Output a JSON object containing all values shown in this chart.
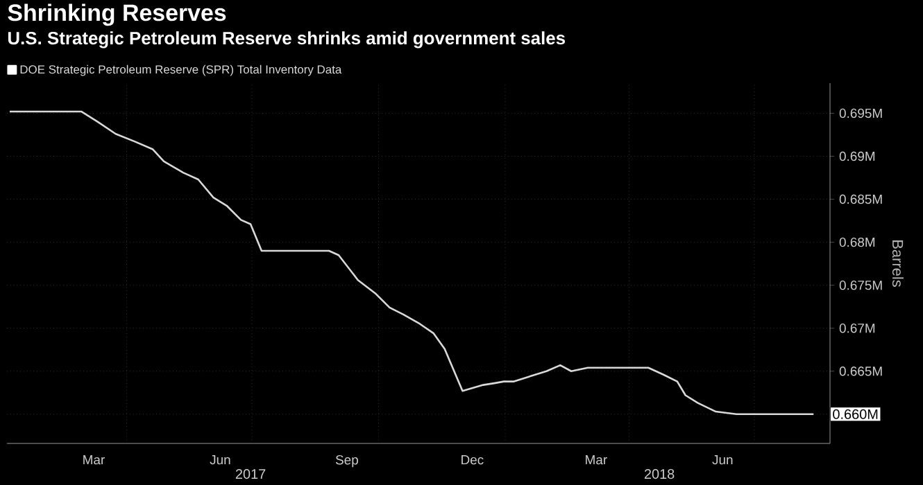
{
  "chart_data": {
    "type": "line",
    "title": "Shrinking Reserves",
    "subtitle": "U.S. Strategic Petroleum Reserve shrinks amid government sales",
    "ylabel": "Barrels",
    "x": [
      "2017-01-06",
      "2017-02-27",
      "2017-03-11",
      "2017-03-24",
      "2017-04-07",
      "2017-04-20",
      "2017-04-28",
      "2017-05-12",
      "2017-05-23",
      "2017-06-03",
      "2017-06-13",
      "2017-06-23",
      "2017-06-30",
      "2017-07-08",
      "2017-08-26",
      "2017-09-02",
      "2017-09-16",
      "2017-09-29",
      "2017-10-09",
      "2017-10-19",
      "2017-10-31",
      "2017-11-10",
      "2017-11-18",
      "2017-12-01",
      "2017-12-16",
      "2017-12-24",
      "2017-12-31",
      "2018-01-07",
      "2018-01-15",
      "2018-01-31",
      "2018-02-10",
      "2018-02-18",
      "2018-03-02",
      "2018-04-15",
      "2018-04-26",
      "2018-05-06",
      "2018-05-12",
      "2018-05-21",
      "2018-06-03",
      "2018-06-18",
      "2018-08-13"
    ],
    "series": [
      {
        "name": "DOE Strategic Petroleum Reserve (SPR) Total Inventory Data",
        "color": "#d9d9d9",
        "values": [
          0.6952,
          0.6952,
          0.694,
          0.6926,
          0.6917,
          0.6908,
          0.6894,
          0.6881,
          0.6873,
          0.6852,
          0.6842,
          0.6826,
          0.6821,
          0.679,
          0.679,
          0.6785,
          0.6756,
          0.674,
          0.6724,
          0.6716,
          0.6705,
          0.6694,
          0.6676,
          0.6627,
          0.6634,
          0.6636,
          0.6638,
          0.6638,
          0.6642,
          0.665,
          0.6657,
          0.665,
          0.6654,
          0.6654,
          0.6646,
          0.6638,
          0.6622,
          0.6613,
          0.6603,
          0.66,
          0.66
        ],
        "value_labels": [
          null,
          null,
          null,
          null,
          null,
          null,
          null,
          null,
          null,
          null,
          null,
          null,
          null,
          null,
          null,
          null,
          null,
          null,
          null,
          null,
          null,
          null,
          null,
          null,
          null,
          null,
          null,
          null,
          null,
          null,
          null,
          null,
          null,
          null,
          null,
          null,
          null,
          null,
          null,
          null,
          "0.660M"
        ]
      }
    ],
    "xlim": [
      "2017-01-04",
      "2018-08-25"
    ],
    "xticks": [
      {
        "value": "2017-03-08",
        "label": "Mar"
      },
      {
        "value": "2017-06-08",
        "label": "Jun"
      },
      {
        "value": "2017-09-08",
        "label": "Sep"
      },
      {
        "value": "2017-12-08",
        "label": "Dec"
      },
      {
        "value": "2018-03-08",
        "label": "Mar"
      },
      {
        "value": "2018-06-08",
        "label": "Jun"
      },
      {
        "value": "2017-04-01",
        "label": null
      },
      {
        "value": "2017-07-01",
        "label": null
      },
      {
        "value": "2017-10-01",
        "label": null
      },
      {
        "value": "2018-01-01",
        "label": null
      },
      {
        "value": "2018-04-01",
        "label": null
      },
      {
        "value": "2018-07-01",
        "label": null
      }
    ],
    "x2lim": [
      "2017-01-04",
      "2018-08-25"
    ],
    "x2ticks": [
      {
        "value": "2017-06-30",
        "label": "2017"
      },
      {
        "value": "2018-04-23",
        "label": "2018"
      }
    ],
    "ylim": [
      0.6566,
      0.6985
    ],
    "yticks": [
      {
        "value": 0.66,
        "label": null
      },
      {
        "value": 0.665,
        "label": "0.665M"
      },
      {
        "value": 0.67,
        "label": "0.67M"
      },
      {
        "value": 0.675,
        "label": "0.675M"
      },
      {
        "value": 0.68,
        "label": "0.68M"
      },
      {
        "value": 0.685,
        "label": "0.685M"
      },
      {
        "value": 0.69,
        "label": "0.69M"
      },
      {
        "value": 0.695,
        "label": "0.695M"
      }
    ],
    "grid": true,
    "legend": "top left",
    "line_style": "solid"
  }
}
